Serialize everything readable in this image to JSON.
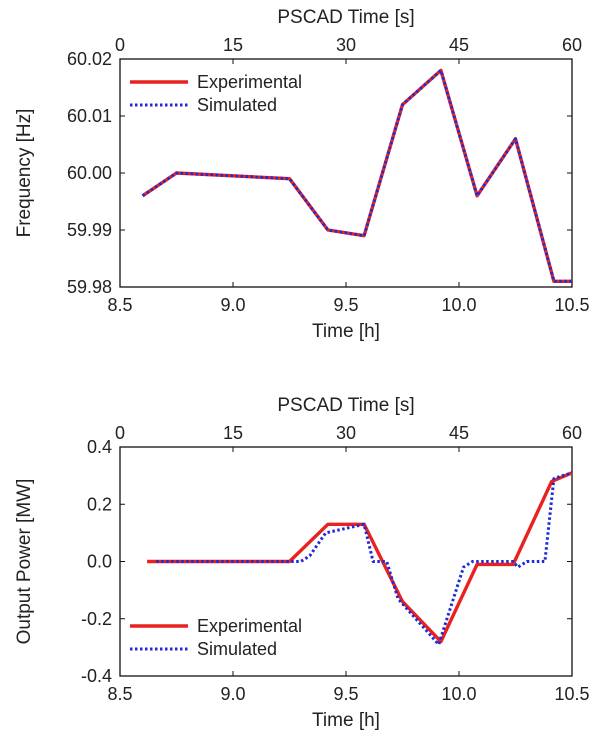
{
  "chart_data": [
    {
      "type": "line",
      "top_xlabel": "PSCAD Time [s]",
      "top_ticks": [
        "0",
        "15",
        "30",
        "45",
        "60"
      ],
      "top_tick_values": [
        0,
        15,
        30,
        45,
        60
      ],
      "top_xlim": [
        0,
        60
      ],
      "xlabel": "Time [h]",
      "ylabel": "Frequency [Hz]",
      "xlim": [
        8.5,
        10.5
      ],
      "ylim": [
        59.98,
        60.02
      ],
      "x_ticks": [
        "8.5",
        "9.0",
        "9.5",
        "10.0",
        "10.5"
      ],
      "x_tick_values": [
        8.5,
        9.0,
        9.5,
        10.0,
        10.5
      ],
      "y_ticks": [
        "59.98",
        "59.99",
        "60.00",
        "60.01",
        "60.02"
      ],
      "y_tick_values": [
        59.98,
        59.99,
        60.0,
        60.01,
        60.02
      ],
      "grid": false,
      "legend_position": "top-left",
      "series": [
        {
          "name": "Experimental",
          "color": "#e8231f",
          "style": "solid",
          "x": [
            8.6,
            8.75,
            9.25,
            9.42,
            9.58,
            9.75,
            9.92,
            10.08,
            10.25,
            10.42,
            10.5
          ],
          "y": [
            59.996,
            60.0,
            59.999,
            59.99,
            59.989,
            60.012,
            60.018,
            59.996,
            60.006,
            59.981,
            59.981
          ]
        },
        {
          "name": "Simulated",
          "color": "#1f2bd8",
          "style": "dotted",
          "x": [
            8.6,
            8.75,
            9.25,
            9.42,
            9.58,
            9.75,
            9.92,
            10.08,
            10.25,
            10.42,
            10.5
          ],
          "y": [
            59.996,
            60.0,
            59.999,
            59.99,
            59.989,
            60.012,
            60.018,
            59.996,
            60.006,
            59.981,
            59.981
          ]
        }
      ]
    },
    {
      "type": "line",
      "top_xlabel": "PSCAD Time [s]",
      "top_ticks": [
        "0",
        "15",
        "30",
        "45",
        "60"
      ],
      "top_tick_values": [
        0,
        15,
        30,
        45,
        60
      ],
      "top_xlim": [
        0,
        60
      ],
      "xlabel": "Time [h]",
      "ylabel": "Output Power [MW]",
      "xlim": [
        8.5,
        10.5
      ],
      "ylim": [
        -0.4,
        0.4
      ],
      "x_ticks": [
        "8.5",
        "9.0",
        "9.5",
        "10.0",
        "10.5"
      ],
      "x_tick_values": [
        8.5,
        9.0,
        9.5,
        10.0,
        10.5
      ],
      "y_ticks": [
        "-0.4",
        "-0.2",
        "0.0",
        "0.2",
        "0.4"
      ],
      "y_tick_values": [
        -0.4,
        -0.2,
        0.0,
        0.2,
        0.4
      ],
      "grid": false,
      "legend_position": "bottom-left",
      "series": [
        {
          "name": "Experimental",
          "color": "#e8231f",
          "style": "solid",
          "x": [
            8.62,
            8.66,
            9.25,
            9.42,
            9.58,
            9.75,
            9.92,
            10.08,
            10.24,
            10.41,
            10.5
          ],
          "y": [
            0.0,
            0.0,
            0.0,
            0.13,
            0.13,
            -0.14,
            -0.28,
            -0.01,
            -0.01,
            0.28,
            0.31
          ]
        },
        {
          "name": "Simulated",
          "color": "#1f2bd8",
          "style": "dotted",
          "x": [
            8.66,
            9.3,
            9.34,
            9.41,
            9.58,
            9.62,
            9.68,
            9.73,
            9.91,
            10.02,
            10.06,
            10.24,
            10.26,
            10.3,
            10.38,
            10.42,
            10.46,
            10.5
          ],
          "y": [
            0.0,
            0.0,
            0.02,
            0.1,
            0.13,
            0.0,
            0.0,
            -0.13,
            -0.29,
            -0.02,
            0.0,
            0.0,
            -0.02,
            0.0,
            0.0,
            0.29,
            0.3,
            0.31
          ]
        }
      ]
    }
  ]
}
